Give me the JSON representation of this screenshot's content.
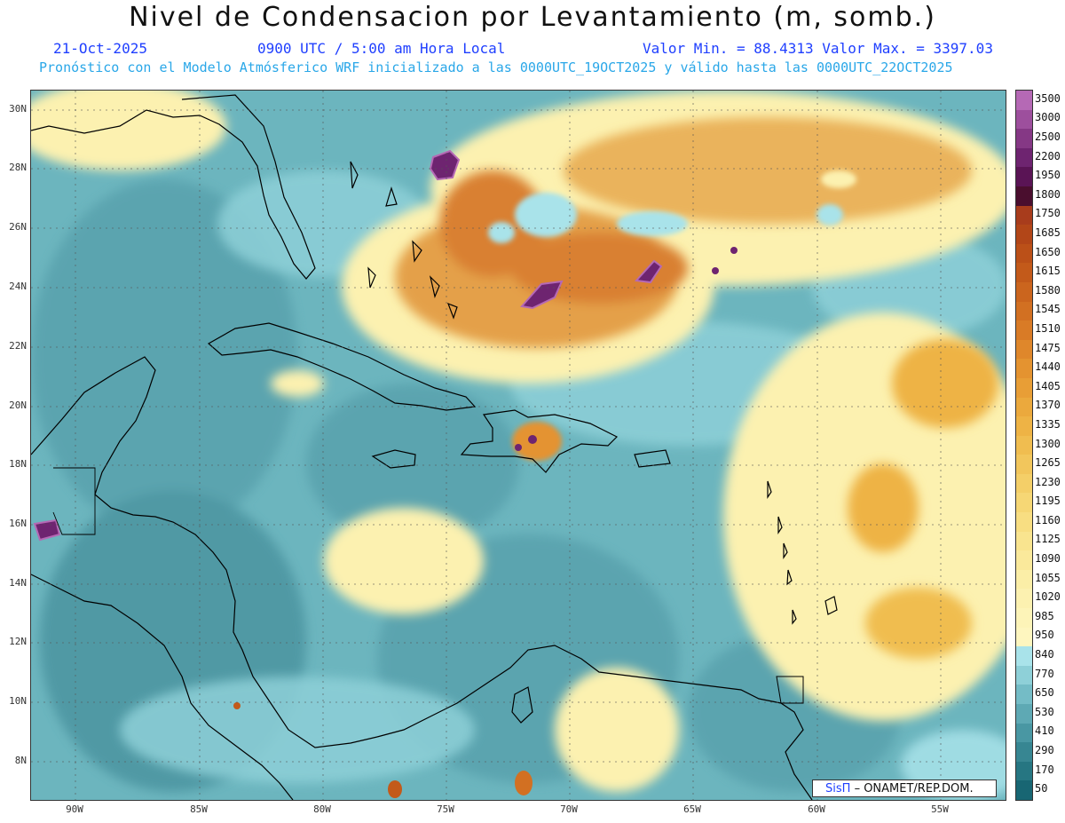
{
  "title": "Nivel de Condensacion por Levantamiento (m, somb.)",
  "date": "21-Oct-2025",
  "time": "0900 UTC / 5:00 am Hora Local",
  "minmax": "Valor Min. = 88.4313   Valor Max. = 3397.03",
  "forecast_note": "Pronóstico con el Modelo Atmósferico WRF inicializado a las 0000UTC_19OCT2025 y válido hasta las  0000UTC_22OCT2025",
  "credit": {
    "brand": "SisΠ",
    "org": "– ONAMET/REP.DOM."
  },
  "lat_labels": [
    "30N",
    "28N",
    "26N",
    "24N",
    "22N",
    "20N",
    "18N",
    "16N",
    "14N",
    "12N",
    "10N",
    "8N"
  ],
  "lon_labels": [
    "90W",
    "85W",
    "80W",
    "75W",
    "70W",
    "65W",
    "60W",
    "55W"
  ],
  "colorbar": {
    "labels": [
      "3500",
      "3000",
      "2500",
      "2200",
      "1950",
      "1800",
      "1750",
      "1685",
      "1650",
      "1615",
      "1580",
      "1545",
      "1510",
      "1475",
      "1440",
      "1405",
      "1370",
      "1335",
      "1300",
      "1265",
      "1230",
      "1195",
      "1160",
      "1125",
      "1090",
      "1055",
      "1020",
      "985",
      "950",
      "840",
      "770",
      "650",
      "530",
      "410",
      "290",
      "170",
      "50"
    ],
    "colors": [
      "#b569b5",
      "#9d4f9d",
      "#853885",
      "#6e2470",
      "#5a1455",
      "#4a0e2e",
      "#a83c1c",
      "#b24618",
      "#bb5018",
      "#c35a1a",
      "#cb651e",
      "#d27022",
      "#d97b26",
      "#df872b",
      "#e49330",
      "#e89e36",
      "#eba93d",
      "#eeb345",
      "#f0bd50",
      "#f2c65c",
      "#f4cf68",
      "#f6d775",
      "#f8de82",
      "#f9e48f",
      "#fae99b",
      "#fbeea7",
      "#fcf1b0",
      "#fdf4b8",
      "#fef6bf",
      "#a9e3ea",
      "#8ed0d8",
      "#74bcc6",
      "#5ea9b4",
      "#4997a3",
      "#378692",
      "#267682",
      "#186673"
    ]
  },
  "map": {
    "projection_note": "",
    "regions": [
      {
        "name": "atlantic-dry-band",
        "color": "#e59a3b"
      },
      {
        "name": "moist-caribbean",
        "color": "#5ea9b4"
      }
    ]
  }
}
